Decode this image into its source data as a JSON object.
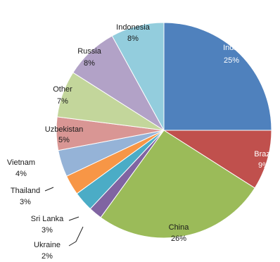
{
  "chart_data": {
    "type": "pie",
    "slices": [
      {
        "name": "India",
        "value": 25,
        "label": "25%",
        "color": "#4f81bd",
        "text_color": "#ffffff"
      },
      {
        "name": "Brazil",
        "value": 9,
        "label": "9%",
        "color": "#c0504d",
        "text_color": "#ffffff"
      },
      {
        "name": "China",
        "value": 26,
        "label": "26%",
        "color": "#9bbb59",
        "text_color": "#1a1a1a"
      },
      {
        "name": "Ukraine",
        "value": 2,
        "label": "2%",
        "color": "#8064a2",
        "text_color": "#1a1a1a"
      },
      {
        "name": "Sri Lanka",
        "value": 3,
        "label": "3%",
        "color": "#4bacc6",
        "text_color": "#1a1a1a"
      },
      {
        "name": "Thailand",
        "value": 3,
        "label": "3%",
        "color": "#f79646",
        "text_color": "#1a1a1a"
      },
      {
        "name": "Vietnam",
        "value": 4,
        "label": "4%",
        "color": "#95b3d7",
        "text_color": "#1a1a1a"
      },
      {
        "name": "Uzbekistan",
        "value": 5,
        "label": "5%",
        "color": "#d99694",
        "text_color": "#1a1a1a"
      },
      {
        "name": "Other",
        "value": 7,
        "label": "7%",
        "color": "#c3d69b",
        "text_color": "#1a1a1a"
      },
      {
        "name": "Russia",
        "value": 8,
        "label": "8%",
        "color": "#b2a2c7",
        "text_color": "#1a1a1a"
      },
      {
        "name": "Indonesia",
        "value": 8,
        "label": "8%",
        "color": "#93cddd",
        "text_color": "#1a1a1a"
      }
    ],
    "start_angle_deg": 0,
    "direction": "clockwise",
    "legend": "none",
    "data_labels": "category name and percent"
  }
}
